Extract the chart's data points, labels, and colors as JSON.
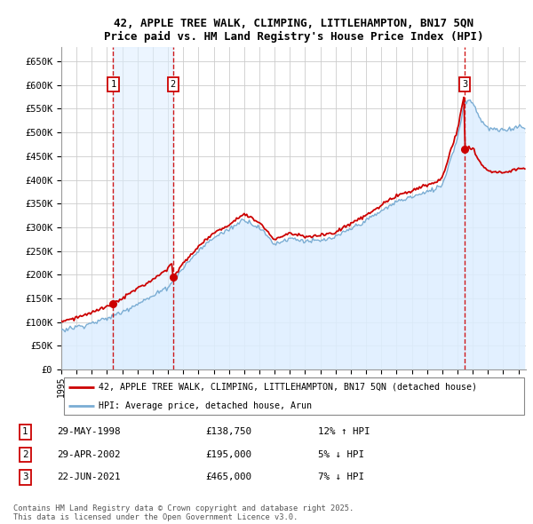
{
  "title1": "42, APPLE TREE WALK, CLIMPING, LITTLEHAMPTON, BN17 5QN",
  "title2": "Price paid vs. HM Land Registry's House Price Index (HPI)",
  "xlim_start": 1995.0,
  "xlim_end": 2025.5,
  "ylim_min": 0,
  "ylim_max": 680000,
  "yticks": [
    0,
    50000,
    100000,
    150000,
    200000,
    250000,
    300000,
    350000,
    400000,
    450000,
    500000,
    550000,
    600000,
    650000
  ],
  "ytick_labels": [
    "£0",
    "£50K",
    "£100K",
    "£150K",
    "£200K",
    "£250K",
    "£300K",
    "£350K",
    "£400K",
    "£450K",
    "£500K",
    "£550K",
    "£600K",
    "£650K"
  ],
  "transactions": [
    {
      "num": 1,
      "year": 1998.41,
      "price": 138750
    },
    {
      "num": 2,
      "year": 2002.33,
      "price": 195000
    },
    {
      "num": 3,
      "year": 2021.47,
      "price": 465000
    }
  ],
  "legend_line1": "42, APPLE TREE WALK, CLIMPING, LITTLEHAMPTON, BN17 5QN (detached house)",
  "legend_line2": "HPI: Average price, detached house, Arun",
  "footnote": "Contains HM Land Registry data © Crown copyright and database right 2025.\nThis data is licensed under the Open Government Licence v3.0.",
  "table_rows": [
    {
      "num": 1,
      "date": "29-MAY-1998",
      "price": "£138,750",
      "pct": "12% ↑ HPI"
    },
    {
      "num": 2,
      "date": "29-APR-2002",
      "price": "£195,000",
      "pct": "5% ↓ HPI"
    },
    {
      "num": 3,
      "date": "22-JUN-2021",
      "price": "£465,000",
      "pct": "7% ↓ HPI"
    }
  ],
  "price_line_color": "#cc0000",
  "hpi_line_color": "#7aadd4",
  "hpi_fill_color": "#ddeeff",
  "vline_color": "#cc0000",
  "grid_color": "#cccccc",
  "box_color": "#cc0000",
  "span_color": "#ddeeff",
  "background_fig": "#ffffff"
}
